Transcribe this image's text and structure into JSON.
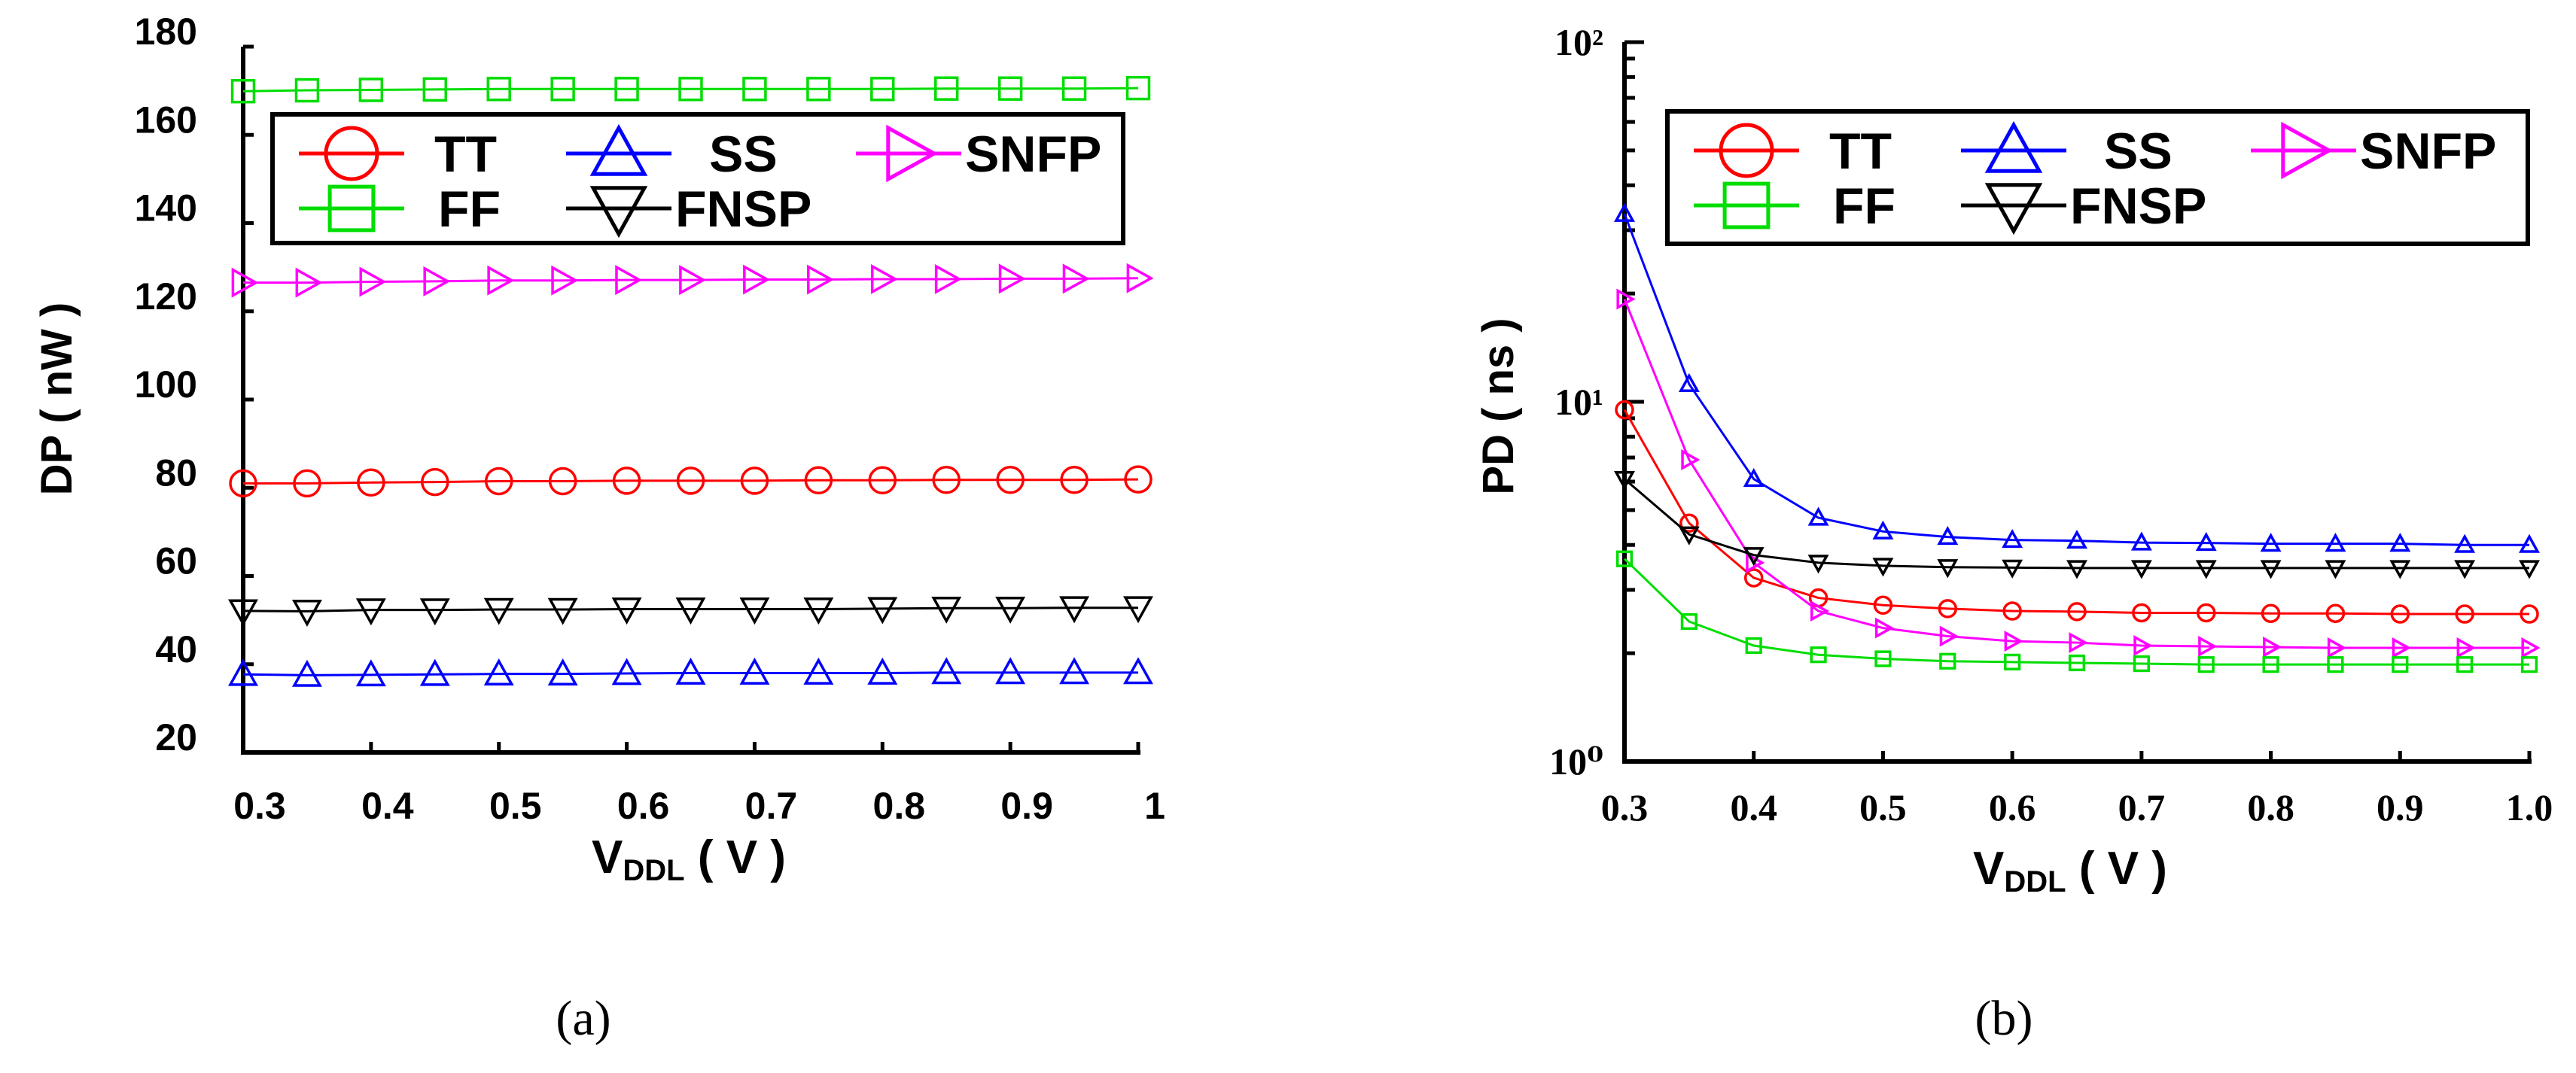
{
  "chart_data": [
    {
      "type": "line",
      "caption": "(a)",
      "xlabel": "VDDL ( V )",
      "xlabel_subscript": "DDL",
      "ylabel": "DP ( nW )",
      "xlim": [
        0.3,
        1.0
      ],
      "ylim": [
        20,
        180
      ],
      "yscale": "linear",
      "grid": false,
      "legend_placement": "top",
      "x": [
        0.3,
        0.35,
        0.4,
        0.45,
        0.5,
        0.55,
        0.6,
        0.65,
        0.7,
        0.75,
        0.8,
        0.85,
        0.9,
        0.95,
        1.0
      ],
      "xticks": [
        0.3,
        0.4,
        0.5,
        0.6,
        0.7,
        0.8,
        0.9,
        1.0
      ],
      "xtick_labels": [
        "0.3",
        "0.4",
        "0.5",
        "0.6",
        "0.7",
        "0.8",
        "0.9",
        "1"
      ],
      "yticks": [
        20,
        40,
        60,
        80,
        100,
        120,
        140,
        160,
        180
      ],
      "ytick_labels": [
        "20",
        "40",
        "60",
        "80",
        "100",
        "120",
        "140",
        "160",
        "180"
      ],
      "series": [
        {
          "name": "TT",
          "color": "#ff0000",
          "marker": "circle",
          "values": [
            81.0,
            81.0,
            81.2,
            81.3,
            81.5,
            81.5,
            81.6,
            81.6,
            81.6,
            81.7,
            81.7,
            81.8,
            81.8,
            81.8,
            81.9
          ]
        },
        {
          "name": "SS",
          "color": "#0000ff",
          "marker": "triangle-up",
          "values": [
            37.7,
            37.5,
            37.6,
            37.7,
            37.8,
            37.8,
            37.9,
            38.0,
            38.0,
            38.0,
            38.0,
            38.1,
            38.1,
            38.1,
            38.1
          ]
        },
        {
          "name": "SNFP",
          "color": "#ff00ff",
          "marker": "triangle-right",
          "values": [
            126.5,
            126.5,
            126.7,
            126.8,
            127.0,
            127.0,
            127.1,
            127.1,
            127.2,
            127.2,
            127.3,
            127.3,
            127.4,
            127.4,
            127.5
          ]
        },
        {
          "name": "FF",
          "color": "#00dd00",
          "marker": "square",
          "values": [
            169.9,
            170.1,
            170.2,
            170.3,
            170.4,
            170.4,
            170.4,
            170.4,
            170.4,
            170.4,
            170.4,
            170.5,
            170.5,
            170.5,
            170.6
          ]
        },
        {
          "name": "FNSP",
          "color": "#000000",
          "marker": "triangle-down",
          "values": [
            52.1,
            52.0,
            52.3,
            52.3,
            52.4,
            52.4,
            52.5,
            52.5,
            52.5,
            52.5,
            52.6,
            52.7,
            52.7,
            52.8,
            52.8
          ]
        }
      ]
    },
    {
      "type": "line",
      "caption": "(b)",
      "xlabel": "VDDL ( V )",
      "xlabel_subscript": "DDL",
      "ylabel": "PD ( ns )",
      "xlim": [
        0.3,
        1.0
      ],
      "ylim": [
        1,
        100
      ],
      "yscale": "log",
      "grid": false,
      "legend_placement": "top",
      "x": [
        0.3,
        0.35,
        0.4,
        0.45,
        0.5,
        0.55,
        0.6,
        0.65,
        0.7,
        0.75,
        0.8,
        0.85,
        0.9,
        0.95,
        1.0
      ],
      "xticks": [
        0.3,
        0.4,
        0.5,
        0.6,
        0.7,
        0.8,
        0.9,
        1.0
      ],
      "xtick_labels": [
        "0.3",
        "0.4",
        "0.5",
        "0.6",
        "0.7",
        "0.8",
        "0.9",
        "1.0"
      ],
      "yticks": [
        1,
        10,
        100
      ],
      "ytick_labels": [
        "10⁰",
        "10¹",
        "10²"
      ],
      "series": [
        {
          "name": "TT",
          "color": "#ff0000",
          "marker": "circle",
          "values": [
            9.5,
            4.6,
            3.24,
            2.85,
            2.72,
            2.66,
            2.62,
            2.61,
            2.59,
            2.59,
            2.58,
            2.58,
            2.57,
            2.57,
            2.57
          ]
        },
        {
          "name": "SS",
          "color": "#0000ff",
          "marker": "triangle-up",
          "values": [
            33.3,
            11.2,
            6.1,
            4.76,
            4.36,
            4.21,
            4.13,
            4.11,
            4.06,
            4.05,
            4.03,
            4.03,
            4.03,
            4.0,
            4.0
          ]
        },
        {
          "name": "SNFP",
          "color": "#ff00ff",
          "marker": "triangle-right",
          "values": [
            19.3,
            6.9,
            3.57,
            2.62,
            2.35,
            2.23,
            2.16,
            2.14,
            2.1,
            2.09,
            2.08,
            2.07,
            2.07,
            2.07,
            2.07
          ]
        },
        {
          "name": "FF",
          "color": "#00dd00",
          "marker": "square",
          "values": [
            3.66,
            2.45,
            2.1,
            1.98,
            1.93,
            1.9,
            1.89,
            1.88,
            1.87,
            1.86,
            1.86,
            1.86,
            1.86,
            1.86,
            1.86
          ]
        },
        {
          "name": "FNSP",
          "color": "#000000",
          "marker": "triangle-down",
          "values": [
            6.1,
            4.28,
            3.75,
            3.57,
            3.5,
            3.47,
            3.46,
            3.45,
            3.45,
            3.45,
            3.45,
            3.45,
            3.45,
            3.45,
            3.45
          ]
        }
      ]
    }
  ]
}
